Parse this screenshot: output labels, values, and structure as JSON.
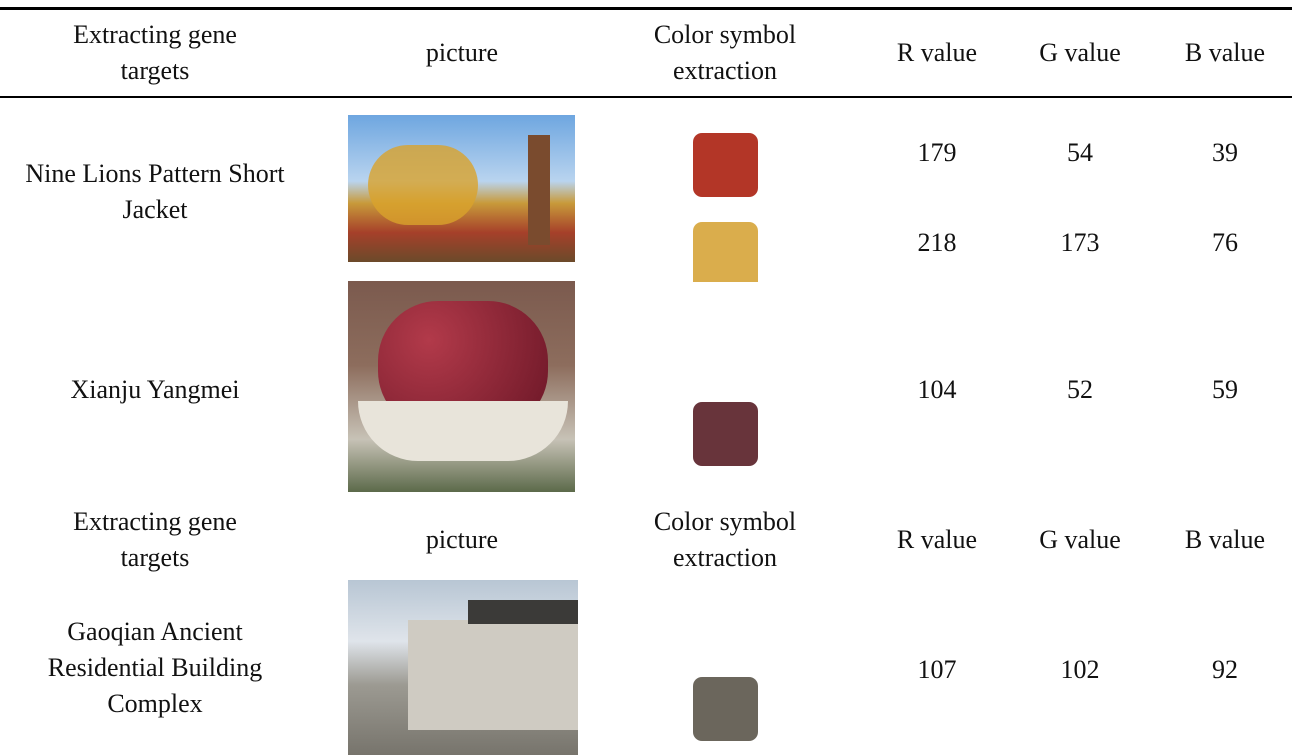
{
  "header": [
    "Extracting gene targets",
    "picture",
    "Color symbol extraction",
    "R value",
    "G value",
    "B value"
  ],
  "rows": [
    {
      "target": "Nine Lions Pattern Short Jacket",
      "colors": [
        [
          179,
          54,
          39
        ],
        [
          218,
          173,
          76
        ]
      ]
    },
    {
      "target": "Xianju Yangmei",
      "colors": [
        [
          104,
          52,
          59
        ]
      ]
    }
  ],
  "header_repeat": [
    "Extracting gene targets",
    "picture",
    "Color symbol extraction",
    "R value",
    "G value",
    "B value"
  ],
  "rows_2": [
    {
      "target": "Gaoqian Ancient Residential Building Complex",
      "colors": [
        [
          107,
          102,
          92
        ]
      ]
    }
  ]
}
